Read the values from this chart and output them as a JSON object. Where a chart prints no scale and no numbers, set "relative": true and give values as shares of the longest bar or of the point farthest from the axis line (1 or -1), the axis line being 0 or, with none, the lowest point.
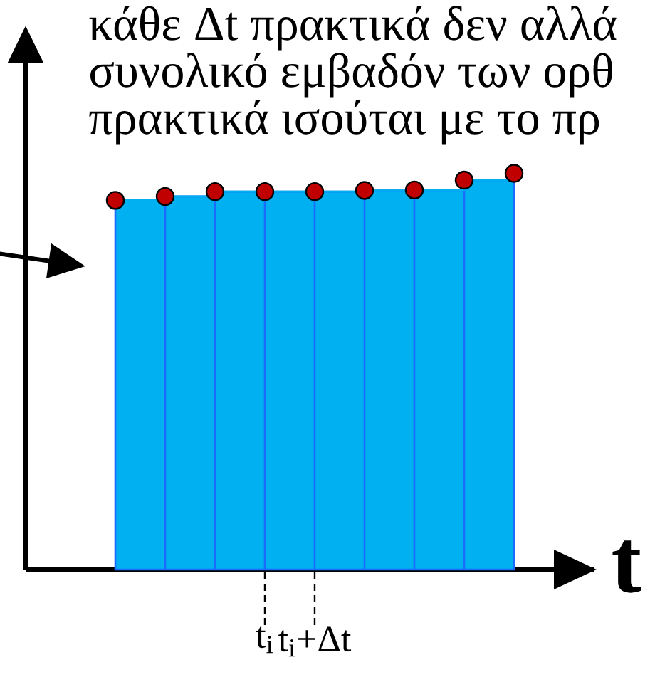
{
  "chart_data": {
    "type": "step",
    "relative": true,
    "annotations": [
      "κάθε Δt πρακτικά δεν αλλά",
      "συνολικό εμβαδόν των ορθ",
      "πρακτικά ισούται με το πρ"
    ],
    "xlabel": "t",
    "categories": [
      null,
      null,
      null,
      "t$_{i}$",
      "t$_{i}$+Δt",
      null,
      null,
      null,
      null
    ],
    "series": [
      {
        "values": [
          0.932,
          0.942,
          0.954,
          0.954,
          0.954,
          0.957,
          0.958,
          0.983,
          1
        ],
        "color": "#00b0f0",
        "marker": "circle",
        "colors": [
          "#c00000",
          "#c00000",
          "#c00000",
          "#c00000",
          "#c00000",
          "#c00000",
          "#c00000",
          "#c00000",
          "#c00000"
        ]
      }
    ]
  }
}
